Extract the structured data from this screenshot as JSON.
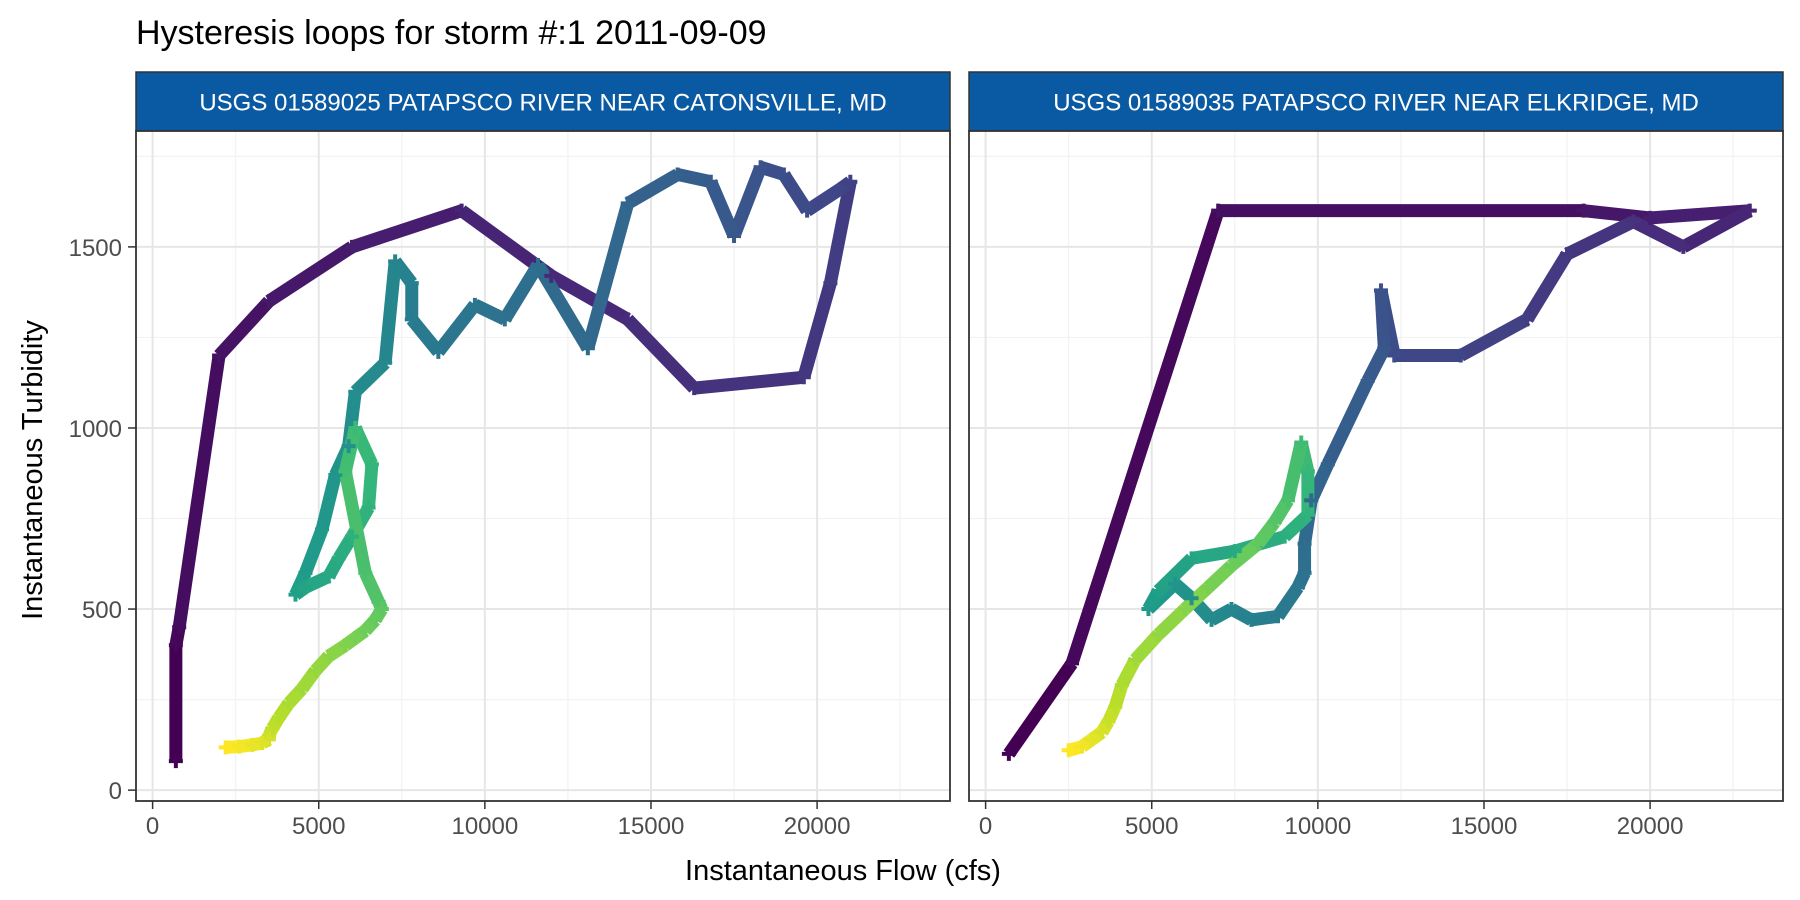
{
  "chart_data": {
    "type": "line",
    "title": "Hysteresis loops for storm #:1   2011-09-09",
    "xlabel": "Instantaneous Flow (cfs)",
    "ylabel": "Instantaneous Turbidity",
    "xlim": [
      -500,
      24000
    ],
    "ylim": [
      -30,
      1820
    ],
    "x_ticks": [
      0,
      5000,
      10000,
      15000,
      20000
    ],
    "y_ticks": [
      0,
      500,
      1000,
      1500
    ],
    "grid": true,
    "legend": "none",
    "color_scale": [
      "#440154",
      "#482878",
      "#3e4a89",
      "#31688e",
      "#26828e",
      "#1f9e89",
      "#35b779",
      "#6ece58",
      "#b5de2b",
      "#fde725"
    ],
    "panels": [
      {
        "strip_label": "USGS 01589025 PATAPSCO RIVER NEAR CATONSVILLE, MD",
        "strip_color": "#0a5aa3",
        "x": [
          700,
          700,
          800,
          2000,
          3500,
          6000,
          9300,
          12000,
          14300,
          16300,
          19600,
          20400,
          21000,
          20700,
          19700,
          19000,
          18300,
          17500,
          16800,
          15800,
          14300,
          13100,
          11600,
          10600,
          9700,
          8600,
          7800,
          7800,
          7300,
          7000,
          6100,
          5900,
          5500,
          5100,
          4600,
          4300,
          4600,
          5300,
          5600,
          6000,
          6500,
          6600,
          6100,
          5800,
          6400,
          6800,
          6900,
          6700,
          6400,
          6100,
          5800,
          5300,
          4900,
          4500,
          4100,
          3800,
          3600,
          3500,
          3500,
          3300,
          3000,
          2600,
          2200
        ],
        "y": [
          80,
          400,
          450,
          1200,
          1350,
          1500,
          1600,
          1420,
          1300,
          1110,
          1140,
          1400,
          1680,
          1660,
          1600,
          1700,
          1720,
          1530,
          1680,
          1700,
          1620,
          1220,
          1450,
          1300,
          1340,
          1210,
          1300,
          1400,
          1460,
          1180,
          1100,
          950,
          870,
          720,
          600,
          540,
          560,
          590,
          640,
          700,
          780,
          900,
          1000,
          880,
          600,
          520,
          500,
          470,
          440,
          420,
          400,
          370,
          330,
          280,
          240,
          200,
          170,
          150,
          140,
          130,
          125,
          120,
          118
        ]
      },
      {
        "strip_label": "USGS 01589035 PATAPSCO RIVER NEAR ELKRIDGE, MD",
        "strip_color": "#0a5aa3",
        "x": [
          700,
          2600,
          7000,
          18000,
          20000,
          23000,
          21000,
          19500,
          17500,
          16300,
          14300,
          12300,
          11900,
          12000,
          11500,
          10300,
          9800,
          9600,
          9600,
          9400,
          8800,
          8000,
          7400,
          6800,
          6200,
          5700,
          4900,
          5200,
          6200,
          7500,
          9000,
          9700,
          9700,
          9500,
          9100,
          8700,
          8200,
          7400,
          6700,
          6000,
          5200,
          4500,
          4100,
          3900,
          3700,
          3500,
          3200,
          2900,
          2500
        ],
        "y": [
          100,
          350,
          1600,
          1600,
          1580,
          1600,
          1500,
          1570,
          1480,
          1300,
          1200,
          1200,
          1380,
          1220,
          1130,
          900,
          800,
          680,
          600,
          560,
          480,
          470,
          500,
          470,
          530,
          570,
          500,
          550,
          640,
          660,
          700,
          760,
          880,
          960,
          800,
          740,
          680,
          620,
          560,
          500,
          430,
          360,
          290,
          230,
          190,
          160,
          140,
          120,
          110
        ]
      }
    ]
  }
}
